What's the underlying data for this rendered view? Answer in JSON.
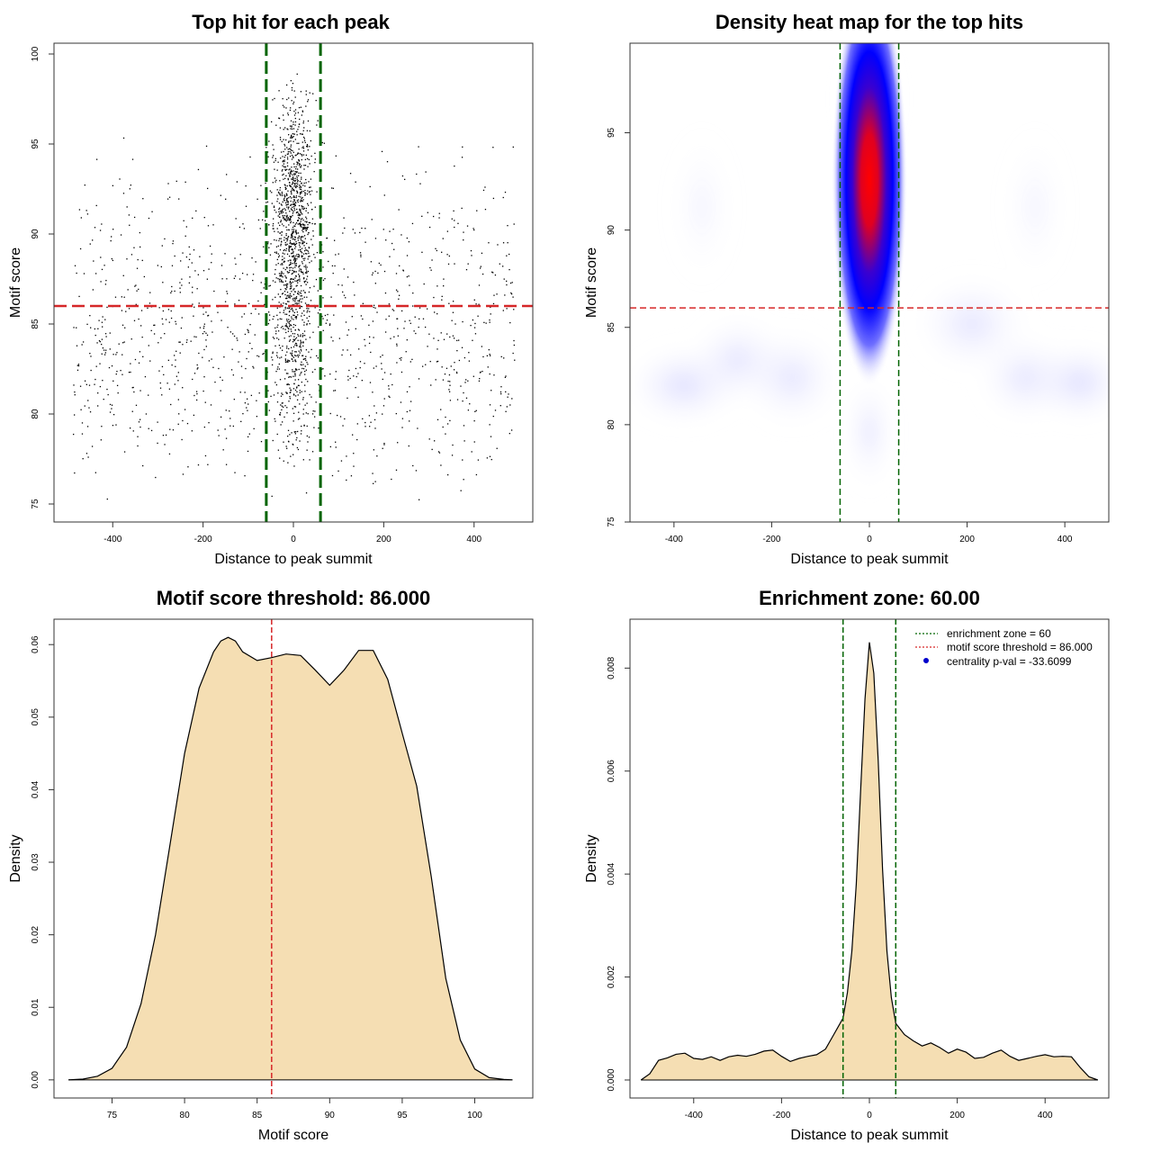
{
  "colors": {
    "points": "#000000",
    "zone_line": "#006400",
    "threshold_line": "#d62728",
    "density_fill": "#f5deb3",
    "heat_low": "#ffffff",
    "heat_mid": "#0000ff",
    "heat_high": "#ff0000",
    "legend_point": "#0000cc"
  },
  "chart_data": [
    {
      "id": "scatter",
      "type": "scatter",
      "title": "Top hit for each peak",
      "xlabel": "Distance to peak summit",
      "ylabel": "Motif score",
      "xlim": [
        -530,
        530
      ],
      "ylim": [
        74,
        100.6
      ],
      "xticks": [
        -400,
        -200,
        0,
        200,
        400
      ],
      "yticks": [
        75,
        80,
        85,
        90,
        95,
        100
      ],
      "vlines": [
        -60,
        60
      ],
      "hline": 86,
      "point_groups": [
        {
          "name": "central",
          "x_center": 0,
          "x_spread": 22,
          "y_min": 77,
          "y_max": 99,
          "y_mode": 91,
          "count": 1350
        },
        {
          "name": "flat",
          "x_min": -490,
          "x_max": 490,
          "y_min": 75,
          "y_max": 96,
          "y_mode": 83,
          "count": 1150
        }
      ]
    },
    {
      "id": "heatmap",
      "type": "heatmap",
      "title": "Density heat map for the top hits",
      "xlabel": "Distance to peak summit",
      "ylabel": "Motif score",
      "xlim": [
        -490,
        490
      ],
      "ylim": [
        75,
        99.6
      ],
      "xticks": [
        -400,
        -200,
        0,
        200,
        400
      ],
      "yticks": [
        75,
        80,
        85,
        90,
        95
      ],
      "vlines": [
        -60,
        60
      ],
      "hline": 86,
      "peak": {
        "x": 0,
        "y": 93
      }
    },
    {
      "id": "score-density",
      "type": "area",
      "title": "Motif score threshold: 86.000",
      "xlabel": "Motif score",
      "ylabel": "Density",
      "xlim": [
        71,
        104
      ],
      "ylim": [
        -0.0025,
        0.0635
      ],
      "xticks": [
        75,
        80,
        85,
        90,
        95,
        100
      ],
      "yticks": [
        0.0,
        0.01,
        0.02,
        0.03,
        0.04,
        0.05,
        0.06
      ],
      "ytick_labels": [
        "0.00",
        "0.01",
        "0.02",
        "0.03",
        "0.04",
        "0.05",
        "0.06"
      ],
      "vlines": [
        86
      ],
      "x": [
        72,
        73,
        74,
        75,
        76,
        77,
        78,
        79,
        80,
        81,
        82,
        82.5,
        83,
        83.5,
        84,
        85,
        86,
        87,
        88,
        89,
        90,
        91,
        92,
        93,
        94,
        95,
        96,
        97,
        98,
        99,
        100,
        101,
        102,
        102.6
      ],
      "y": [
        0.0,
        0.0001,
        0.0005,
        0.0016,
        0.0045,
        0.0105,
        0.02,
        0.0325,
        0.045,
        0.054,
        0.059,
        0.0605,
        0.061,
        0.0605,
        0.059,
        0.0578,
        0.0582,
        0.0587,
        0.0585,
        0.0565,
        0.0544,
        0.0565,
        0.0592,
        0.0592,
        0.0552,
        0.0478,
        0.0405,
        0.028,
        0.014,
        0.0055,
        0.0015,
        0.0003,
        5e-05,
        0.0
      ]
    },
    {
      "id": "distance-density",
      "type": "area",
      "title": "Enrichment zone: 60.00",
      "xlabel": "Distance to peak summit",
      "ylabel": "Density",
      "xlim": [
        -545,
        545
      ],
      "ylim": [
        -0.00035,
        0.00895
      ],
      "xticks": [
        -400,
        -200,
        0,
        200,
        400
      ],
      "yticks": [
        0.0,
        0.002,
        0.004,
        0.006,
        0.008
      ],
      "ytick_labels": [
        "0.000",
        "0.002",
        "0.004",
        "0.006",
        "0.008"
      ],
      "vlines": [
        -60,
        60
      ],
      "x": [
        -520,
        -500,
        -480,
        -460,
        -440,
        -420,
        -400,
        -380,
        -360,
        -340,
        -320,
        -300,
        -280,
        -260,
        -240,
        -220,
        -200,
        -180,
        -160,
        -140,
        -120,
        -100,
        -80,
        -60,
        -50,
        -40,
        -30,
        -20,
        -10,
        0,
        10,
        20,
        30,
        40,
        50,
        60,
        80,
        100,
        120,
        140,
        160,
        180,
        200,
        220,
        240,
        260,
        280,
        300,
        320,
        340,
        360,
        380,
        400,
        420,
        440,
        460,
        480,
        500,
        520
      ],
      "y": [
        0.0,
        0.00012,
        0.00038,
        0.00043,
        0.0005,
        0.00052,
        0.00042,
        0.0004,
        0.00045,
        0.00038,
        0.00045,
        0.00048,
        0.00046,
        0.0005,
        0.00056,
        0.00058,
        0.00046,
        0.00036,
        0.00042,
        0.00046,
        0.00049,
        0.0006,
        0.0009,
        0.0012,
        0.0017,
        0.0025,
        0.0038,
        0.0056,
        0.0074,
        0.0085,
        0.0079,
        0.0062,
        0.0041,
        0.0025,
        0.0016,
        0.0011,
        0.00088,
        0.00076,
        0.00066,
        0.00072,
        0.00063,
        0.00052,
        0.0006,
        0.00054,
        0.00042,
        0.00044,
        0.00052,
        0.00058,
        0.00046,
        0.00038,
        0.00042,
        0.00046,
        0.00049,
        0.00045,
        0.00046,
        0.00045,
        0.00024,
        6e-05,
        0.0
      ],
      "legend": [
        {
          "label": "enrichment zone = 60",
          "kind": "dotted-line",
          "color": "#006400"
        },
        {
          "label": "motif score threshold = 86.000",
          "kind": "dotted-line",
          "color": "#d62728"
        },
        {
          "label": "centrality p-val = -33.6099",
          "kind": "point",
          "color": "#0000cc"
        }
      ]
    }
  ]
}
